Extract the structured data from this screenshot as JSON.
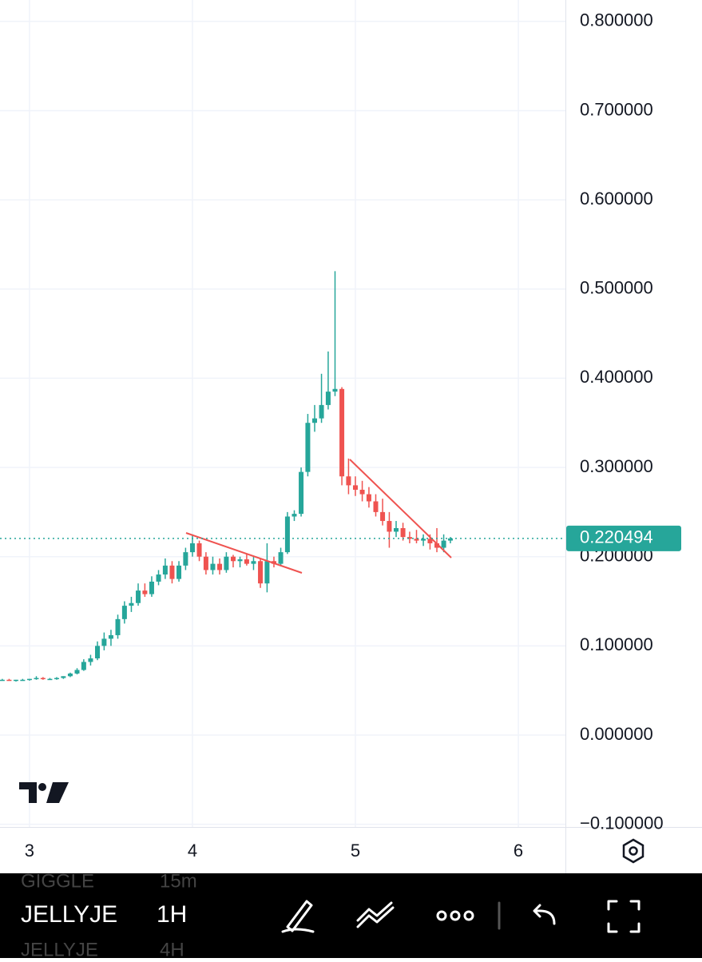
{
  "chart_data": {
    "type": "candlestick",
    "x": [
      2.833,
      2.875,
      2.917,
      2.958,
      3.0,
      3.042,
      3.083,
      3.125,
      3.167,
      3.208,
      3.25,
      3.292,
      3.333,
      3.375,
      3.417,
      3.458,
      3.5,
      3.542,
      3.583,
      3.625,
      3.667,
      3.708,
      3.75,
      3.792,
      3.833,
      3.875,
      3.917,
      3.958,
      4.0,
      4.042,
      4.083,
      4.125,
      4.167,
      4.208,
      4.25,
      4.292,
      4.333,
      4.375,
      4.417,
      4.458,
      4.5,
      4.542,
      4.583,
      4.625,
      4.667,
      4.708,
      4.75,
      4.792,
      4.833,
      4.875,
      4.917,
      4.958,
      5.0,
      5.042,
      5.083,
      5.125,
      5.167,
      5.208,
      5.25,
      5.292,
      5.333,
      5.375,
      5.417,
      5.458,
      5.5,
      5.542,
      5.583
    ],
    "open": [
      0.062,
      0.062,
      0.061,
      0.062,
      0.062,
      0.063,
      0.064,
      0.063,
      0.063,
      0.064,
      0.066,
      0.069,
      0.073,
      0.082,
      0.086,
      0.1,
      0.108,
      0.112,
      0.13,
      0.145,
      0.148,
      0.162,
      0.158,
      0.172,
      0.18,
      0.19,
      0.175,
      0.19,
      0.205,
      0.215,
      0.2,
      0.185,
      0.192,
      0.185,
      0.2,
      0.195,
      0.197,
      0.192,
      0.195,
      0.17,
      0.195,
      0.192,
      0.205,
      0.245,
      0.248,
      0.295,
      0.35,
      0.355,
      0.37,
      0.385,
      0.388,
      0.29,
      0.28,
      0.275,
      0.27,
      0.262,
      0.25,
      0.24,
      0.228,
      0.232,
      0.222,
      0.22,
      0.218,
      0.22,
      0.215,
      0.21,
      0.218
    ],
    "high": [
      0.063,
      0.063,
      0.062,
      0.063,
      0.063,
      0.066,
      0.065,
      0.064,
      0.065,
      0.066,
      0.07,
      0.075,
      0.085,
      0.09,
      0.105,
      0.115,
      0.118,
      0.135,
      0.15,
      0.155,
      0.17,
      0.17,
      0.178,
      0.185,
      0.198,
      0.195,
      0.195,
      0.21,
      0.225,
      0.218,
      0.205,
      0.2,
      0.198,
      0.205,
      0.202,
      0.2,
      0.203,
      0.2,
      0.198,
      0.215,
      0.2,
      0.21,
      0.25,
      0.252,
      0.3,
      0.36,
      0.37,
      0.405,
      0.43,
      0.52,
      0.39,
      0.31,
      0.29,
      0.285,
      0.278,
      0.27,
      0.265,
      0.25,
      0.24,
      0.238,
      0.228,
      0.23,
      0.225,
      0.225,
      0.232,
      0.225,
      0.222
    ],
    "low": [
      0.061,
      0.061,
      0.06,
      0.061,
      0.061,
      0.062,
      0.062,
      0.062,
      0.062,
      0.063,
      0.065,
      0.068,
      0.072,
      0.078,
      0.084,
      0.095,
      0.1,
      0.108,
      0.125,
      0.138,
      0.145,
      0.155,
      0.155,
      0.168,
      0.175,
      0.17,
      0.172,
      0.185,
      0.2,
      0.195,
      0.18,
      0.18,
      0.18,
      0.182,
      0.188,
      0.188,
      0.19,
      0.185,
      0.165,
      0.16,
      0.188,
      0.19,
      0.203,
      0.24,
      0.245,
      0.29,
      0.34,
      0.35,
      0.365,
      0.38,
      0.28,
      0.27,
      0.268,
      0.262,
      0.255,
      0.245,
      0.235,
      0.21,
      0.222,
      0.218,
      0.215,
      0.215,
      0.212,
      0.208,
      0.205,
      0.205,
      0.215
    ],
    "close": [
      0.062,
      0.061,
      0.062,
      0.062,
      0.063,
      0.064,
      0.063,
      0.063,
      0.064,
      0.066,
      0.069,
      0.073,
      0.082,
      0.086,
      0.1,
      0.108,
      0.112,
      0.13,
      0.145,
      0.148,
      0.162,
      0.158,
      0.172,
      0.18,
      0.19,
      0.175,
      0.19,
      0.205,
      0.215,
      0.2,
      0.185,
      0.192,
      0.185,
      0.2,
      0.195,
      0.197,
      0.192,
      0.195,
      0.17,
      0.195,
      0.192,
      0.205,
      0.245,
      0.248,
      0.295,
      0.35,
      0.355,
      0.37,
      0.385,
      0.388,
      0.29,
      0.28,
      0.275,
      0.27,
      0.262,
      0.25,
      0.24,
      0.228,
      0.232,
      0.222,
      0.22,
      0.218,
      0.22,
      0.215,
      0.21,
      0.218,
      0.2205
    ],
    "up_color": "#26a69a",
    "down_color": "#ef5350",
    "xlim": [
      2.819,
      6.289
    ],
    "xticks": [
      3,
      4,
      5,
      6
    ],
    "ylim": [
      -0.103,
      0.824
    ],
    "yticks": [
      {
        "value": -0.1,
        "label": "−0.100000"
      },
      {
        "value": 0,
        "label": "0.000000"
      },
      {
        "value": 0.1,
        "label": "0.100000"
      },
      {
        "value": 0.2,
        "label": "0.200000"
      },
      {
        "value": 0.3,
        "label": "0.300000"
      },
      {
        "value": 0.4,
        "label": "0.400000"
      },
      {
        "value": 0.5,
        "label": "0.500000"
      },
      {
        "value": 0.6,
        "label": "0.600000"
      },
      {
        "value": 0.7,
        "label": "0.700000"
      },
      {
        "value": 0.8,
        "label": "0.800000"
      }
    ],
    "grid": true,
    "last_price": 0.220494
  },
  "toolbar": {
    "prev_symbol": "GIGGLE",
    "prev_interval": "15m",
    "symbol": "JELLYJE",
    "interval": "1H",
    "next_symbol": "JELLYJE",
    "next_interval": "4H"
  }
}
